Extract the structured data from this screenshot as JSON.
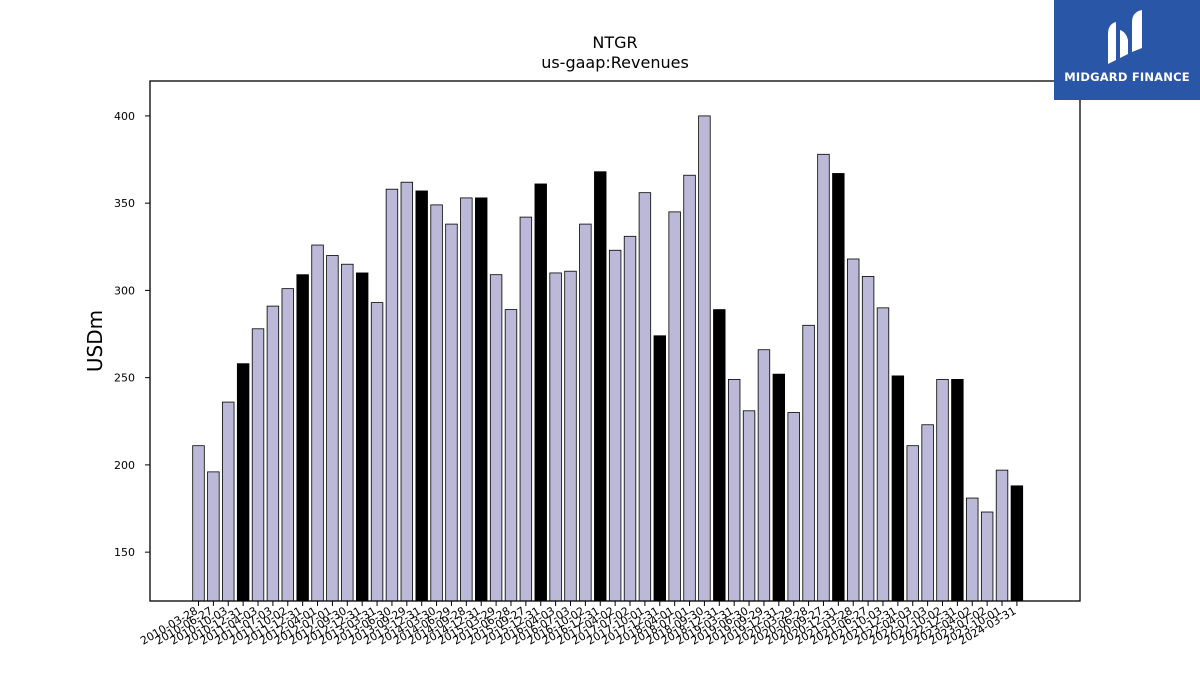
{
  "logo": {
    "text": "MIDGARD FINANCE",
    "color": "#2a56a8"
  },
  "chart_data": {
    "type": "bar",
    "title": "NTGR",
    "subtitle": "us-gaap:Revenues",
    "xlabel": "",
    "ylabel": "USDm",
    "ylim": [
      122,
      420
    ],
    "yticks": [
      150,
      200,
      250,
      300,
      350,
      400
    ],
    "grid": false,
    "colors": {
      "regular": "#bcb8d8",
      "highlight": "#000000",
      "edge": "#000000"
    },
    "categories": [
      "2010-03-28",
      "2010-06-27",
      "2010-10-03",
      "2010-12-31",
      "2011-04-03",
      "2011-07-03",
      "2011-10-02",
      "2011-12-31",
      "2012-04-01",
      "2012-07-01",
      "2012-09-30",
      "2012-12-31",
      "2013-03-31",
      "2013-06-30",
      "2013-09-29",
      "2013-12-31",
      "2014-03-30",
      "2014-06-29",
      "2014-09-28",
      "2014-12-31",
      "2015-03-29",
      "2015-06-28",
      "2015-09-27",
      "2015-12-31",
      "2016-04-03",
      "2016-07-03",
      "2016-10-02",
      "2016-12-31",
      "2017-04-02",
      "2017-07-02",
      "2017-10-01",
      "2017-12-31",
      "2018-04-01",
      "2018-07-01",
      "2018-09-30",
      "2018-12-31",
      "2019-03-31",
      "2019-06-30",
      "2019-09-29",
      "2019-12-31",
      "2020-03-29",
      "2020-06-28",
      "2020-09-27",
      "2020-12-31",
      "2021-03-28",
      "2021-06-27",
      "2021-10-03",
      "2021-12-31",
      "2022-04-03",
      "2022-07-03",
      "2022-10-02",
      "2022-12-31",
      "2023-04-02",
      "2023-07-02",
      "2023-10-01",
      "2024-03-31"
    ],
    "values": [
      211,
      196,
      236,
      258,
      278,
      291,
      301,
      309,
      326,
      320,
      315,
      310,
      293,
      358,
      362,
      357,
      349,
      338,
      353,
      353,
      309,
      289,
      342,
      361,
      310,
      311,
      338,
      368,
      323,
      331,
      356,
      274,
      345,
      366,
      400,
      289,
      249,
      231,
      266,
      252,
      230,
      280,
      378,
      367,
      318,
      308,
      290,
      251,
      211,
      223,
      249,
      249,
      181,
      173,
      197,
      188
    ],
    "highlighted": [
      false,
      false,
      false,
      true,
      false,
      false,
      false,
      true,
      false,
      false,
      false,
      true,
      false,
      false,
      false,
      true,
      false,
      false,
      false,
      true,
      false,
      false,
      false,
      true,
      false,
      false,
      false,
      true,
      false,
      false,
      false,
      true,
      false,
      false,
      false,
      true,
      false,
      false,
      false,
      true,
      false,
      false,
      false,
      true,
      false,
      false,
      false,
      true,
      false,
      false,
      false,
      true,
      false,
      false,
      false,
      true
    ]
  }
}
